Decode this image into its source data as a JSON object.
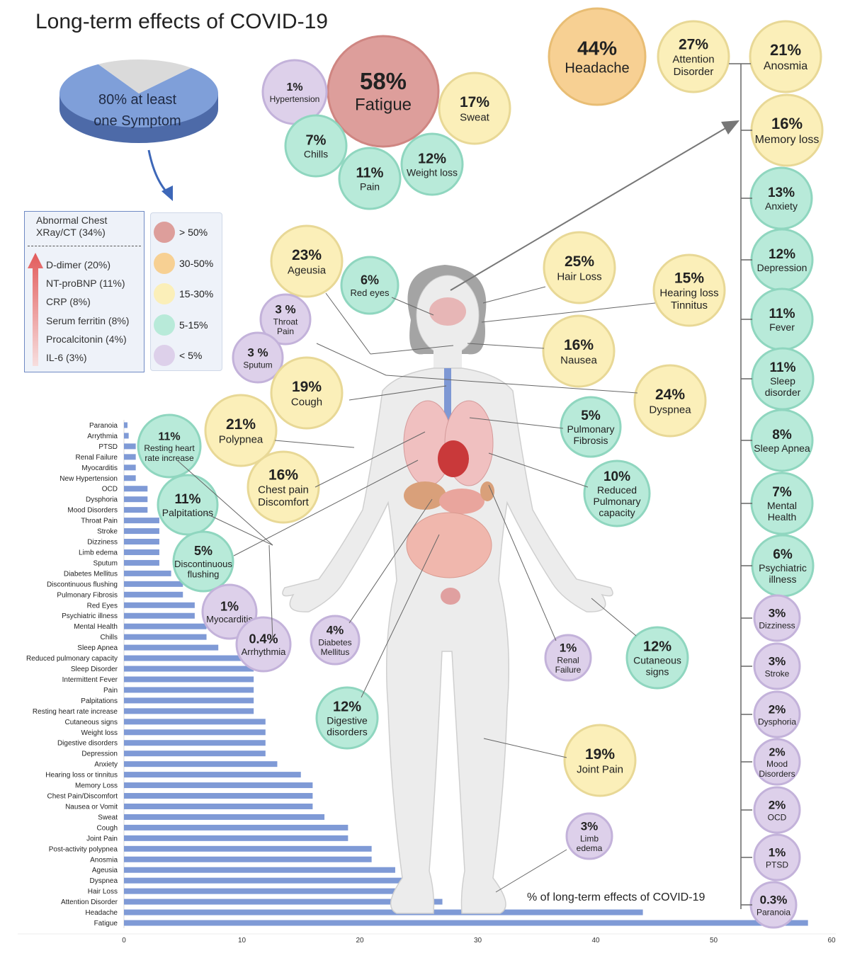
{
  "title": "Long-term effects of COVID-19",
  "pie": {
    "value": 80,
    "line1": "80% at least",
    "line2": "one Symptom",
    "colors": {
      "filled": "#7f9fd9",
      "rest": "#dadada"
    }
  },
  "legend": [
    {
      "label": "> 50%",
      "color": "#dd9e9b"
    },
    {
      "label": "30-50%",
      "color": "#f7d093"
    },
    {
      "label": "15-30%",
      "color": "#fbefb9"
    },
    {
      "label": "5-15%",
      "color": "#b8ead9"
    },
    {
      "label": "< 5%",
      "color": "#ddd0ea"
    }
  ],
  "markers": {
    "head_line1": "Abnormal Chest",
    "head_line2": "XRay/CT (34%)",
    "items": [
      "D-dimer (20%)",
      "NT-proBNP (11%)",
      "CRP (8%)",
      "Serum ferritin (8%)",
      "Procalcitonin (4%)",
      "IL-6 (3%)"
    ]
  },
  "bubble_colors": {
    "red": "#dd9e9b",
    "orange": "#f7d093",
    "yellow": "#fbefb9",
    "green": "#b8ead9",
    "purple": "#ddd0ea"
  },
  "bubbles": [
    {
      "pct": "58%",
      "label": "Fatigue",
      "cls": "red"
    },
    {
      "pct": "44%",
      "label": "Headache",
      "cls": "orange"
    },
    {
      "pct": "27%",
      "label": "Attention Disorder",
      "cls": "yellow"
    },
    {
      "pct": "21%",
      "label": "Anosmia",
      "cls": "yellow"
    },
    {
      "pct": "16%",
      "label": "Memory loss",
      "cls": "yellow"
    },
    {
      "pct": "13%",
      "label": "Anxiety",
      "cls": "green"
    },
    {
      "pct": "12%",
      "label": "Depression",
      "cls": "green"
    },
    {
      "pct": "11%",
      "label": "Fever",
      "cls": "green"
    },
    {
      "pct": "11%",
      "label": "Sleep disorder",
      "cls": "green"
    },
    {
      "pct": "8%",
      "label": "Sleep Apnea",
      "cls": "green"
    },
    {
      "pct": "7%",
      "label": "Mental Health",
      "cls": "green"
    },
    {
      "pct": "6%",
      "label": "Psychiatric illness",
      "cls": "green"
    },
    {
      "pct": "3%",
      "label": "Dizziness",
      "cls": "purple"
    },
    {
      "pct": "3%",
      "label": "Stroke",
      "cls": "purple"
    },
    {
      "pct": "2%",
      "label": "Dysphoria",
      "cls": "purple"
    },
    {
      "pct": "2%",
      "label": "Mood Disorders",
      "cls": "purple"
    },
    {
      "pct": "2%",
      "label": "OCD",
      "cls": "purple"
    },
    {
      "pct": "1%",
      "label": "PTSD",
      "cls": "purple"
    },
    {
      "pct": "0.3%",
      "label": "Paranoia",
      "cls": "purple"
    },
    {
      "pct": "1%",
      "label": "Hypertension",
      "cls": "purple"
    },
    {
      "pct": "17%",
      "label": "Sweat",
      "cls": "yellow"
    },
    {
      "pct": "7%",
      "label": "Chills",
      "cls": "green"
    },
    {
      "pct": "11%",
      "label": "Pain",
      "cls": "green"
    },
    {
      "pct": "12%",
      "label": "Weight loss",
      "cls": "green"
    },
    {
      "pct": "23%",
      "label": "Ageusia",
      "cls": "yellow"
    },
    {
      "pct": "6%",
      "label": "Red eyes",
      "cls": "green"
    },
    {
      "pct": "3 %",
      "label": "Throat Pain",
      "cls": "purple"
    },
    {
      "pct": "3 %",
      "label": "Sputum",
      "cls": "purple"
    },
    {
      "pct": "19%",
      "label": "Cough",
      "cls": "yellow"
    },
    {
      "pct": "21%",
      "label": "Polypnea",
      "cls": "yellow"
    },
    {
      "pct": "16%",
      "label": "Chest pain Discomfort",
      "cls": "yellow"
    },
    {
      "pct": "11%",
      "label": "Resting heart rate increase",
      "cls": "green"
    },
    {
      "pct": "11%",
      "label": "Palpitations",
      "cls": "green"
    },
    {
      "pct": "5%",
      "label": "Discontinuous flushing",
      "cls": "green"
    },
    {
      "pct": "1%",
      "label": "Myocarditis",
      "cls": "purple"
    },
    {
      "pct": "0.4%",
      "label": "Arrhythmia",
      "cls": "purple"
    },
    {
      "pct": "4%",
      "label": "Diabetes Mellitus",
      "cls": "purple"
    },
    {
      "pct": "12%",
      "label": "Digestive disorders",
      "cls": "green"
    },
    {
      "pct": "25%",
      "label": "Hair Loss",
      "cls": "yellow"
    },
    {
      "pct": "15%",
      "label": "Hearing loss Tinnitus",
      "cls": "yellow"
    },
    {
      "pct": "16%",
      "label": "Nausea",
      "cls": "yellow"
    },
    {
      "pct": "24%",
      "label": "Dyspnea",
      "cls": "yellow"
    },
    {
      "pct": "5%",
      "label": "Pulmonary Fibrosis",
      "cls": "green"
    },
    {
      "pct": "10%",
      "label": "Reduced Pulmonary capacity",
      "cls": "green"
    },
    {
      "pct": "1%",
      "label": "Renal Failure",
      "cls": "purple"
    },
    {
      "pct": "12%",
      "label": "Cutaneous signs",
      "cls": "green"
    },
    {
      "pct": "19%",
      "label": "Joint Pain",
      "cls": "yellow"
    },
    {
      "pct": "3%",
      "label": "Limb edema",
      "cls": "purple"
    }
  ],
  "chart_data": {
    "type": "bar",
    "orientation": "horizontal",
    "xlabel": "% of long-term effects of COVID-19",
    "xlim": [
      0,
      60
    ],
    "xticks": [
      0,
      10,
      20,
      30,
      40,
      50,
      60
    ],
    "bar_color": "#7f9ad6",
    "categories": [
      "Paranoia",
      "Arrythmia",
      "PTSD",
      "Renal Failure",
      "Myocarditis",
      "New Hypertension",
      "OCD",
      "Dysphoria",
      "Mood Disorders",
      "Throat Pain",
      "Stroke",
      "Dizziness",
      "Limb edema",
      "Sputum",
      "Diabetes Mellitus",
      "Discontinuous flushing",
      "Pulmonary Fibrosis",
      "Red Eyes",
      "Psychiatric illness",
      "Mental Health",
      "Chills",
      "Sleep Apnea",
      "Reduced pulmonary capacity",
      "Sleep Disorder",
      "Intermittent Fever",
      "Pain",
      "Palpitations",
      "Resting heart rate increase",
      "Cutaneous signs",
      "Weight loss",
      "Digestive disorders",
      "Depression",
      "Anxiety",
      "Hearing loss or tinnitus",
      "Memory Loss",
      "Chest Pain/Discomfort",
      "Nausea or Vomit",
      "Sweat",
      "Cough",
      "Joint Pain",
      "Post-activity polypnea",
      "Anosmia",
      "Ageusia",
      "Dyspnea",
      "Hair Loss",
      "Attention Disorder",
      "Headache",
      "Fatigue"
    ],
    "values": [
      0.3,
      0.4,
      1,
      1,
      1,
      1,
      2,
      2,
      2,
      3,
      3,
      3,
      3,
      3,
      4,
      5,
      5,
      6,
      6,
      7,
      7,
      8,
      10,
      11,
      11,
      11,
      11,
      11,
      12,
      12,
      12,
      12,
      13,
      15,
      16,
      16,
      16,
      17,
      19,
      19,
      21,
      21,
      23,
      24,
      25,
      27,
      44,
      58
    ]
  }
}
